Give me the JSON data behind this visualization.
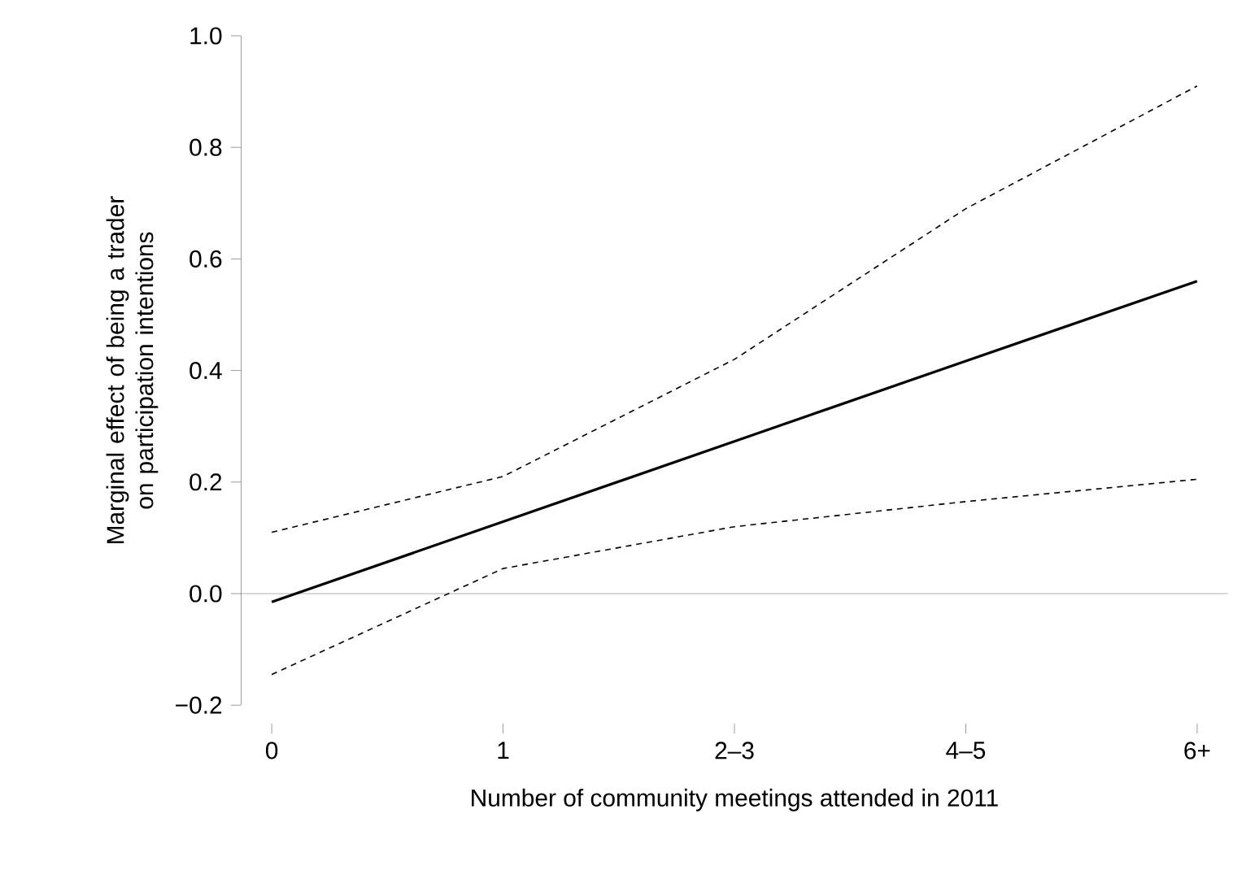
{
  "chart_data": {
    "type": "line",
    "xlabel": "Number of community meetings attended in 2011",
    "ylabel": "Marginal effect of being a trader on participation intentions",
    "categories": [
      "0",
      "1",
      "2–3",
      "4–5",
      "6+"
    ],
    "series": [
      {
        "color": "#000000",
        "line_style": "solid",
        "values": [
          -0.015,
          0.129,
          0.273,
          0.417,
          0.56
        ]
      },
      {
        "color": "#000000",
        "line_style": "dashed",
        "values": [
          0.11,
          0.21,
          0.42,
          0.69,
          0.91
        ]
      },
      {
        "color": "#000000",
        "line_style": "dashed",
        "values": [
          -0.145,
          0.045,
          0.12,
          0.165,
          0.205
        ]
      }
    ],
    "ylim": [
      -0.2,
      1.0
    ],
    "yticks": [
      {
        "value": -0.2,
        "label": "−0.2"
      },
      {
        "value": 0,
        "label": "0.0"
      },
      {
        "value": 0.2,
        "label": "0.2"
      },
      {
        "value": 0.4,
        "label": "0.4"
      },
      {
        "value": 0.6,
        "label": "0.6"
      },
      {
        "value": 0.8,
        "label": "0.8"
      },
      {
        "value": 1.0,
        "label": "1.0"
      }
    ],
    "ref_lines": [
      {
        "axis": "y",
        "value": 0,
        "color": "#a0a0a0"
      }
    ],
    "grid": false,
    "marker": "none"
  }
}
